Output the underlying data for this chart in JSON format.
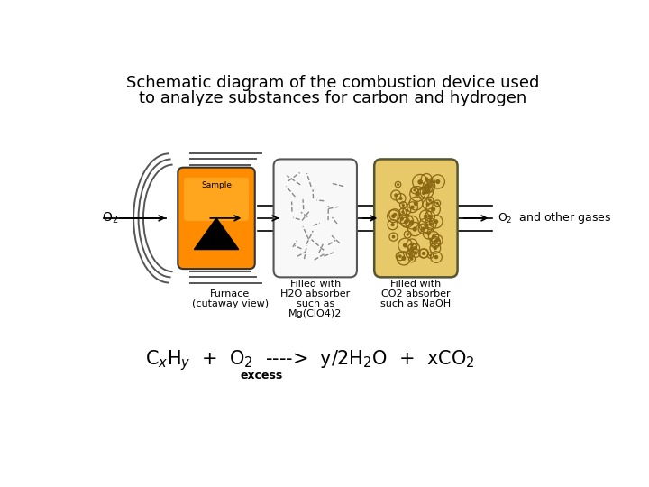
{
  "title_line1": "Schematic diagram of the combustion device used",
  "title_line2": "to analyze substances for carbon and hydrogen",
  "title_fontsize": 13,
  "bg_color": "#ffffff",
  "furnace_label_line1": "Furnace",
  "furnace_label_line2": "(cutaway view)",
  "h2o_label_line1": "Filled with",
  "h2o_label_line2": "H2O absorber",
  "h2o_label_line3": "such as",
  "h2o_label_line4": "Mg(ClO4)2",
  "co2_label_line1": "Filled with",
  "co2_label_line2": "CO2 absorber",
  "co2_label_line3": "such as NaOH",
  "o2_input_label": "O2",
  "sample_label": "Sample",
  "furnace_orange_color": "#FF8C00",
  "h2o_box_color": "#f8f8f8",
  "co2_box_color": "#E8C96A",
  "co2_dot_color": "#8B6914",
  "shell_color": "#cccccc",
  "excess_label": "excess",
  "label_fontsize": 8,
  "eq_fontsize": 15
}
